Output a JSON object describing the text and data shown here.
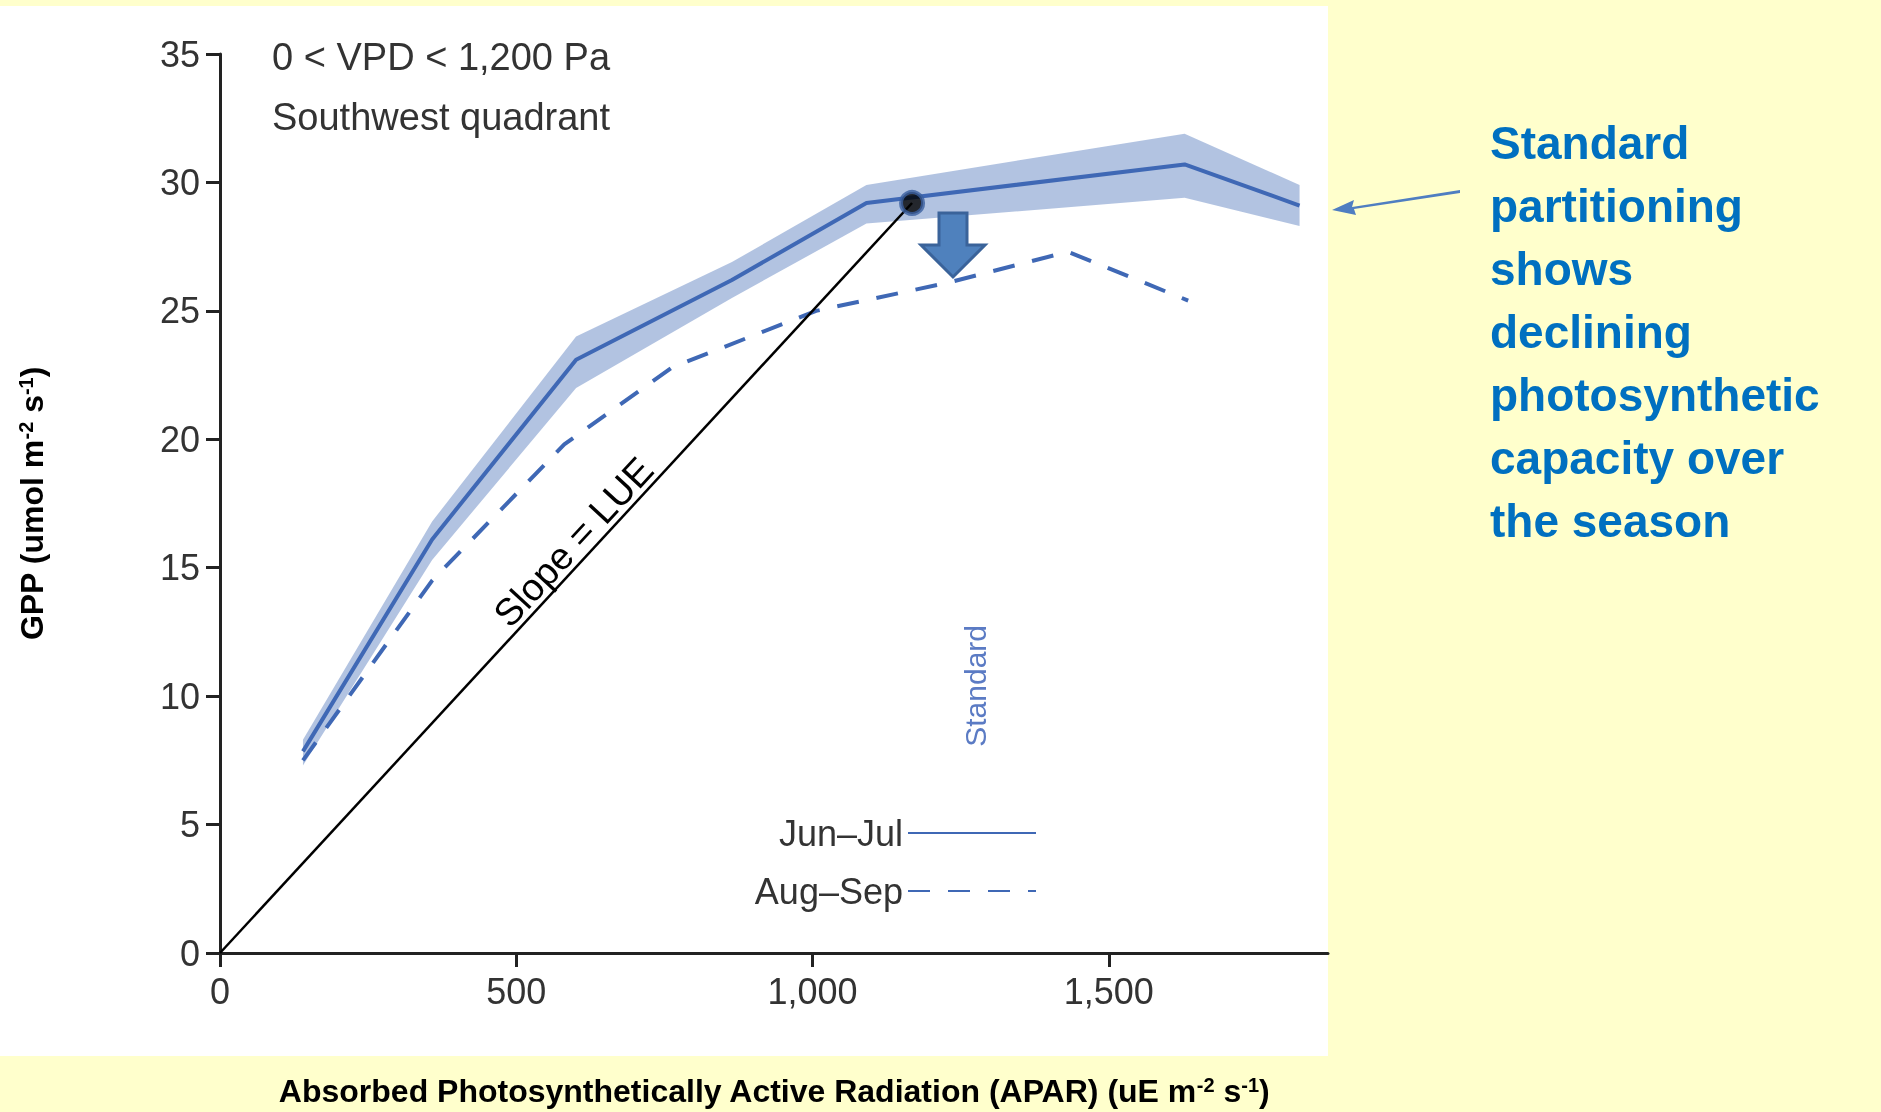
{
  "chart_data": {
    "type": "line",
    "xlabel": "Absorbed Photosynthetically Active Radiation (APAR) (uE m$^{-2}$ s$^{-1}$)",
    "ylabel": "GPP (umol m$^{-2}$ s$^{-1}$)",
    "legend_title": "Standard",
    "annotations": [
      "0 < VPD < 1,200 Pa",
      "Southwest quadrant",
      {
        "text": "Slope = LUE",
        "x": 620,
        "y": 15.5
      },
      "Standard partitioning shows declining photosynthetic capacity over the season"
    ],
    "xlim": [
      0,
      1870
    ],
    "xticks": [
      0,
      500,
      {
        "value": 1000,
        "label": "1,000"
      },
      {
        "value": 1500,
        "label": "1,500"
      }
    ],
    "ylim": [
      0,
      35
    ],
    "yticks": [
      0,
      5,
      10,
      15,
      20,
      25,
      30,
      35
    ],
    "grid": false,
    "legend": "bottom right",
    "marker": "none",
    "series": [
      {
        "name": "Jun–Jul",
        "color": "#3f68b5",
        "line_style": "solid",
        "x": [
          140,
          358,
          601,
          864,
          1091,
          1628,
          1822
        ],
        "values": [
          7.85,
          16.1,
          23.1,
          26.2,
          29.2,
          30.7,
          29.1
        ],
        "lower": [
          7.3,
          15.3,
          22.0,
          25.5,
          28.4,
          29.4,
          28.3
        ],
        "upper": [
          8.3,
          16.8,
          24.0,
          26.9,
          29.9,
          31.9,
          29.9
        ]
      },
      {
        "name": "Aug–Sep",
        "color": "#3f68b5",
        "line_style": "dashed",
        "x": [
          140,
          358,
          581,
          763,
          1006,
          1229,
          1431,
          1634
        ],
        "values": [
          7.5,
          14.5,
          19.8,
          22.8,
          25.0,
          26.1,
          27.3,
          25.4
        ]
      },
      {
        "type": "line",
        "color": "#000000",
        "line_style": "solid",
        "x": [
          0,
          1168
        ],
        "values": [
          0,
          29.2
        ]
      },
      {
        "type": "scatter",
        "color": "#000000",
        "marker": "circle",
        "x": [
          1168
        ],
        "values": [
          29.2
        ]
      }
    ]
  }
}
